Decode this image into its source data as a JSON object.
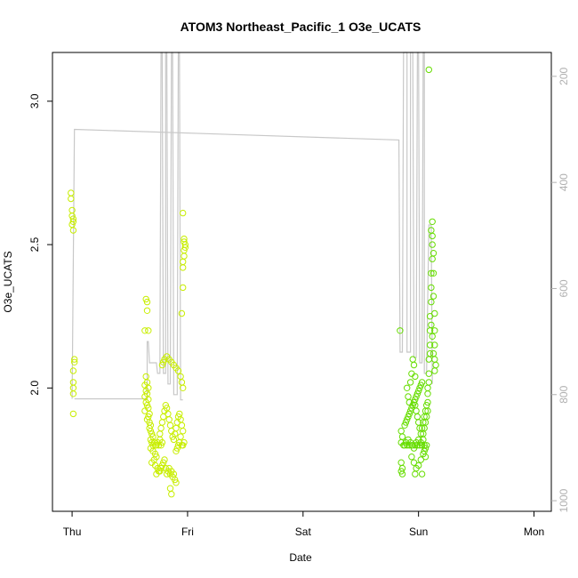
{
  "chart_data": {
    "type": "scatter",
    "title": "ATOM3 Northeast_Pacific_1 O3e_UCATS",
    "xlabel": "Date",
    "ylabel": "O3e_UCATS",
    "x_ticks": [
      "Thu",
      "Fri",
      "Sat",
      "Sun",
      "Mon"
    ],
    "x_tick_days": [
      0,
      1,
      2,
      3,
      4
    ],
    "x_range_days": [
      -0.17,
      4.15
    ],
    "ylim": [
      1.57,
      3.17
    ],
    "y_ticks": [
      2.0,
      2.5,
      3.0
    ],
    "y2_range": [
      1020,
      155
    ],
    "y2_ticks": [
      200,
      400,
      600,
      800,
      1000
    ],
    "y2_inverted": true,
    "grid": false,
    "legend": "none",
    "colors": {
      "points_light": "#d4f000",
      "points_green": "#6be000",
      "altitude_line": "#c8c8c8"
    },
    "altitude_series": {
      "name": "",
      "color": "#c8c8c8",
      "points": [
        [
          0.0,
          808
        ],
        [
          0.02,
          300
        ],
        [
          2.83,
          320
        ],
        [
          2.84,
          720
        ],
        [
          2.86,
          720
        ],
        [
          2.87,
          155
        ],
        [
          2.9,
          155
        ],
        [
          2.9,
          720
        ],
        [
          2.93,
          720
        ],
        [
          2.93,
          155
        ],
        [
          2.95,
          155
        ],
        [
          2.96,
          730
        ],
        [
          2.98,
          730
        ],
        [
          2.99,
          155
        ],
        [
          3.0,
          155
        ],
        [
          3.01,
          740
        ],
        [
          3.03,
          740
        ],
        [
          3.04,
          155
        ],
        [
          3.05,
          155
        ],
        [
          3.05,
          760
        ],
        [
          3.07,
          760
        ],
        [
          3.09,
          480
        ],
        [
          3.11,
          480
        ],
        [
          3.12,
          780
        ]
      ]
    },
    "altitude_series_2": {
      "points": [
        [
          0.02,
          808
        ],
        [
          0.6,
          808
        ],
        [
          0.65,
          808
        ],
        [
          0.65,
          700
        ],
        [
          0.66,
          700
        ],
        [
          0.67,
          740
        ],
        [
          0.73,
          740
        ],
        [
          0.74,
          760
        ],
        [
          0.76,
          760
        ],
        [
          0.77,
          155
        ],
        [
          0.78,
          155
        ],
        [
          0.79,
          760
        ],
        [
          0.81,
          760
        ],
        [
          0.81,
          155
        ],
        [
          0.82,
          155
        ],
        [
          0.83,
          780
        ],
        [
          0.85,
          780
        ],
        [
          0.86,
          155
        ],
        [
          0.87,
          155
        ],
        [
          0.88,
          800
        ],
        [
          0.91,
          800
        ],
        [
          0.92,
          155
        ],
        [
          0.93,
          155
        ],
        [
          0.94,
          810
        ],
        [
          0.96,
          810
        ]
      ]
    },
    "series": [
      {
        "name": "",
        "color": "#c8ee00",
        "points": [
          [
            -0.01,
            2.68
          ],
          [
            -0.01,
            2.66
          ],
          [
            0.0,
            2.62
          ],
          [
            0.0,
            2.6
          ],
          [
            0.01,
            2.59
          ],
          [
            0.01,
            2.58
          ],
          [
            0.0,
            2.57
          ],
          [
            0.01,
            2.55
          ],
          [
            0.02,
            2.1
          ],
          [
            0.02,
            2.09
          ],
          [
            0.01,
            2.06
          ],
          [
            0.01,
            2.02
          ],
          [
            0.01,
            2.0
          ],
          [
            0.01,
            1.98
          ],
          [
            0.01,
            1.91
          ],
          [
            0.64,
            2.31
          ],
          [
            0.65,
            2.3
          ],
          [
            0.65,
            2.27
          ],
          [
            0.63,
            2.2
          ],
          [
            0.66,
            2.2
          ],
          [
            0.64,
            2.04
          ],
          [
            0.65,
            2.02
          ],
          [
            0.63,
            2.01
          ],
          [
            0.66,
            2.0
          ],
          [
            0.64,
            1.99
          ],
          [
            0.65,
            1.98
          ],
          [
            0.63,
            1.97
          ],
          [
            0.66,
            1.96
          ],
          [
            0.64,
            1.95
          ],
          [
            0.65,
            1.94
          ],
          [
            0.66,
            1.93
          ],
          [
            0.63,
            1.92
          ],
          [
            0.67,
            1.91
          ],
          [
            0.66,
            1.9
          ],
          [
            0.65,
            1.89
          ],
          [
            0.67,
            1.88
          ],
          [
            0.68,
            1.87
          ],
          [
            0.67,
            1.86
          ],
          [
            0.68,
            1.85
          ],
          [
            0.69,
            1.84
          ],
          [
            0.7,
            1.83
          ],
          [
            0.68,
            1.82
          ],
          [
            0.71,
            1.81
          ],
          [
            0.69,
            1.81
          ],
          [
            0.72,
            1.8
          ],
          [
            0.7,
            1.8
          ],
          [
            0.73,
            1.8
          ],
          [
            0.74,
            1.81
          ],
          [
            0.75,
            1.8
          ],
          [
            0.76,
            1.82
          ],
          [
            0.77,
            1.8
          ],
          [
            0.78,
            1.81
          ],
          [
            0.68,
            1.79
          ],
          [
            0.7,
            1.78
          ],
          [
            0.72,
            1.77
          ],
          [
            0.73,
            1.76
          ],
          [
            0.71,
            1.75
          ],
          [
            0.69,
            1.74
          ],
          [
            0.72,
            1.73
          ],
          [
            0.74,
            1.72
          ],
          [
            0.75,
            1.71
          ],
          [
            0.73,
            1.7
          ],
          [
            0.76,
            1.71
          ],
          [
            0.77,
            1.72
          ],
          [
            0.78,
            1.73
          ],
          [
            0.79,
            1.74
          ],
          [
            0.8,
            1.75
          ],
          [
            0.81,
            1.72
          ],
          [
            0.82,
            1.7
          ],
          [
            0.83,
            1.71
          ],
          [
            0.84,
            1.72
          ],
          [
            0.85,
            1.7
          ],
          [
            0.86,
            1.71
          ],
          [
            0.87,
            1.69
          ],
          [
            0.88,
            1.7
          ],
          [
            0.89,
            1.68
          ],
          [
            0.85,
            1.65
          ],
          [
            0.86,
            1.63
          ],
          [
            0.9,
            1.67
          ],
          [
            0.76,
            1.84
          ],
          [
            0.77,
            1.86
          ],
          [
            0.78,
            1.88
          ],
          [
            0.79,
            1.9
          ],
          [
            0.8,
            1.92
          ],
          [
            0.81,
            1.94
          ],
          [
            0.82,
            1.93
          ],
          [
            0.83,
            1.91
          ],
          [
            0.84,
            1.89
          ],
          [
            0.85,
            1.87
          ],
          [
            0.86,
            1.85
          ],
          [
            0.87,
            1.83
          ],
          [
            0.88,
            1.82
          ],
          [
            0.89,
            1.84
          ],
          [
            0.9,
            1.86
          ],
          [
            0.91,
            1.88
          ],
          [
            0.92,
            1.9
          ],
          [
            0.93,
            1.91
          ],
          [
            0.94,
            1.89
          ],
          [
            0.95,
            1.87
          ],
          [
            0.96,
            1.85
          ],
          [
            0.94,
            1.83
          ],
          [
            0.93,
            1.81
          ],
          [
            0.92,
            1.8
          ],
          [
            0.91,
            1.79
          ],
          [
            0.9,
            1.78
          ],
          [
            0.95,
            1.8
          ],
          [
            0.96,
            1.8
          ],
          [
            0.97,
            1.81
          ],
          [
            0.78,
            2.08
          ],
          [
            0.79,
            2.09
          ],
          [
            0.8,
            2.1
          ],
          [
            0.82,
            2.11
          ],
          [
            0.84,
            2.1
          ],
          [
            0.86,
            2.09
          ],
          [
            0.88,
            2.08
          ],
          [
            0.9,
            2.07
          ],
          [
            0.92,
            2.06
          ],
          [
            0.94,
            2.04
          ],
          [
            0.95,
            2.02
          ],
          [
            0.96,
            2.0
          ],
          [
            0.96,
            2.61
          ],
          [
            0.97,
            2.52
          ],
          [
            0.97,
            2.51
          ],
          [
            0.98,
            2.5
          ],
          [
            0.98,
            2.49
          ],
          [
            0.97,
            2.48
          ],
          [
            0.97,
            2.46
          ],
          [
            0.96,
            2.44
          ],
          [
            0.96,
            2.42
          ],
          [
            0.96,
            2.35
          ],
          [
            0.95,
            2.26
          ]
        ]
      },
      {
        "name": "",
        "color": "#66dd00",
        "points": [
          [
            2.84,
            2.2
          ],
          [
            3.09,
            3.11
          ],
          [
            2.85,
            1.74
          ],
          [
            2.86,
            1.72
          ],
          [
            2.85,
            1.71
          ],
          [
            2.86,
            1.7
          ],
          [
            2.85,
            1.85
          ],
          [
            2.86,
            1.83
          ],
          [
            2.85,
            1.81
          ],
          [
            2.87,
            1.8
          ],
          [
            2.88,
            1.8
          ],
          [
            2.89,
            1.81
          ],
          [
            2.9,
            1.8
          ],
          [
            2.91,
            1.82
          ],
          [
            2.92,
            1.8
          ],
          [
            2.93,
            1.81
          ],
          [
            2.94,
            1.8
          ],
          [
            2.95,
            1.8
          ],
          [
            2.96,
            1.79
          ],
          [
            2.97,
            1.8
          ],
          [
            2.98,
            1.81
          ],
          [
            2.99,
            1.8
          ],
          [
            3.0,
            1.82
          ],
          [
            3.01,
            1.8
          ],
          [
            3.02,
            1.81
          ],
          [
            3.03,
            1.8
          ],
          [
            3.04,
            1.82
          ],
          [
            3.05,
            1.8
          ],
          [
            3.06,
            1.79
          ],
          [
            3.07,
            1.8
          ],
          [
            2.88,
            1.87
          ],
          [
            2.89,
            1.88
          ],
          [
            2.9,
            1.89
          ],
          [
            2.91,
            1.9
          ],
          [
            2.92,
            1.91
          ],
          [
            2.93,
            1.92
          ],
          [
            2.94,
            1.93
          ],
          [
            2.95,
            1.94
          ],
          [
            2.96,
            1.95
          ],
          [
            2.97,
            1.96
          ],
          [
            2.98,
            1.97
          ],
          [
            2.99,
            1.98
          ],
          [
            3.0,
            1.99
          ],
          [
            3.01,
            2.0
          ],
          [
            3.02,
            2.01
          ],
          [
            3.03,
            2.02
          ],
          [
            2.9,
            2.0
          ],
          [
            2.91,
            1.97
          ],
          [
            2.92,
            1.95
          ],
          [
            2.93,
            2.02
          ],
          [
            2.94,
            2.05
          ],
          [
            2.95,
            2.1
          ],
          [
            2.96,
            2.08
          ],
          [
            2.97,
            2.04
          ],
          [
            2.94,
            1.76
          ],
          [
            2.96,
            1.74
          ],
          [
            2.98,
            1.72
          ],
          [
            3.0,
            1.73
          ],
          [
            3.02,
            1.75
          ],
          [
            3.04,
            1.77
          ],
          [
            2.97,
            1.7
          ],
          [
            3.03,
            1.7
          ],
          [
            3.06,
            1.76
          ],
          [
            3.05,
            1.78
          ],
          [
            3.04,
            1.84
          ],
          [
            3.05,
            1.86
          ],
          [
            3.06,
            1.88
          ],
          [
            3.07,
            1.9
          ],
          [
            3.08,
            1.92
          ],
          [
            3.08,
            1.95
          ],
          [
            3.08,
            2.0
          ],
          [
            3.09,
            2.05
          ],
          [
            3.09,
            2.1
          ],
          [
            3.1,
            2.15
          ],
          [
            3.1,
            2.2
          ],
          [
            3.1,
            2.25
          ],
          [
            3.11,
            2.3
          ],
          [
            3.11,
            2.35
          ],
          [
            3.11,
            2.4
          ],
          [
            3.12,
            2.45
          ],
          [
            3.12,
            2.5
          ],
          [
            3.11,
            2.55
          ],
          [
            3.12,
            2.58
          ],
          [
            3.12,
            2.53
          ],
          [
            3.13,
            2.47
          ],
          [
            3.13,
            2.4
          ],
          [
            3.13,
            2.32
          ],
          [
            3.14,
            2.26
          ],
          [
            3.14,
            2.2
          ],
          [
            3.14,
            2.15
          ],
          [
            3.14,
            2.1
          ],
          [
            3.15,
            2.08
          ],
          [
            3.14,
            2.06
          ],
          [
            3.13,
            2.12
          ],
          [
            3.12,
            2.18
          ],
          [
            3.11,
            2.22
          ],
          [
            3.1,
            2.12
          ],
          [
            3.09,
            2.02
          ],
          [
            3.08,
            1.98
          ],
          [
            3.07,
            1.94
          ],
          [
            3.06,
            1.92
          ],
          [
            3.05,
            1.9
          ],
          [
            3.04,
            1.88
          ],
          [
            3.03,
            1.86
          ],
          [
            3.02,
            1.84
          ],
          [
            3.01,
            1.86
          ],
          [
            3.0,
            1.88
          ],
          [
            2.99,
            1.9
          ],
          [
            2.98,
            1.92
          ],
          [
            2.97,
            1.94
          ]
        ]
      }
    ]
  }
}
